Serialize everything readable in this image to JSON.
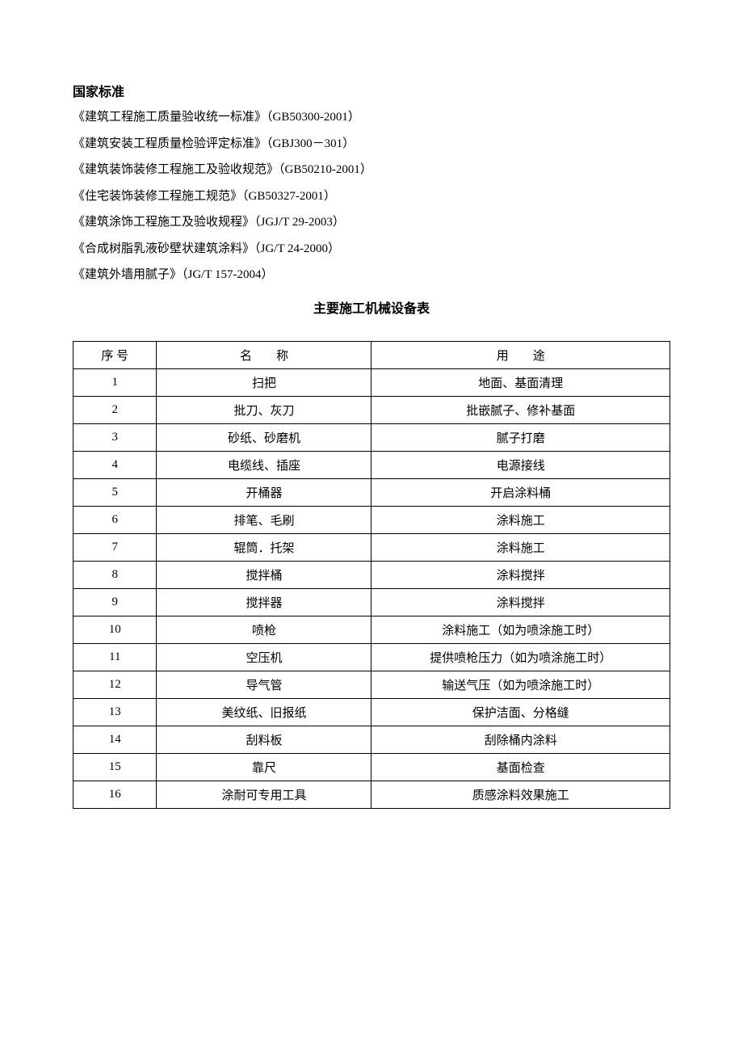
{
  "section_title": "国家标准",
  "standards": [
    "《建筑工程施工质量验收统一标准》（GB50300-2001）",
    "《建筑安装工程质量检验评定标准》（GBJ300－301）",
    "《建筑装饰装修工程施工及验收规范》（GB50210-2001）",
    "《住宅装饰装修工程施工规范》（GB50327-2001）",
    "《建筑涂饰工程施工及验收规程》（JGJ/T 29-2003）",
    "《合成树脂乳液砂壁状建筑涂料》（JG/T 24-2000）",
    "《建筑外墙用腻子》（JG/T 157-2004）"
  ],
  "table_title": "主要施工机械设备表",
  "table": {
    "headers": {
      "seq": "序 号",
      "name": "名  称",
      "use": "用  途"
    },
    "rows": [
      {
        "seq": "1",
        "name": "扫把",
        "use": "地面、基面清理"
      },
      {
        "seq": "2",
        "name": "批刀、灰刀",
        "use": "批嵌腻子、修补基面"
      },
      {
        "seq": "3",
        "name": "砂纸、砂磨机",
        "use": "腻子打磨"
      },
      {
        "seq": "4",
        "name": "电缆线、插座",
        "use": "电源接线"
      },
      {
        "seq": "5",
        "name": "开桶器",
        "use": "开启涂料桶"
      },
      {
        "seq": "6",
        "name": "排笔、毛刷",
        "use": "涂料施工"
      },
      {
        "seq": "7",
        "name": "辊筒．托架",
        "use": "涂料施工"
      },
      {
        "seq": "8",
        "name": "搅拌桶",
        "use": "涂料搅拌"
      },
      {
        "seq": "9",
        "name": "搅拌器",
        "use": "涂料搅拌"
      },
      {
        "seq": "10",
        "name": "喷枪",
        "use": "涂料施工（如为喷涂施工时）"
      },
      {
        "seq": "11",
        "name": "空压机",
        "use": "提供喷枪压力（如为喷涂施工时）"
      },
      {
        "seq": "12",
        "name": "导气管",
        "use": "输送气压（如为喷涂施工时）"
      },
      {
        "seq": "13",
        "name": "美纹纸、旧报纸",
        "use": "保护洁面、分格缝"
      },
      {
        "seq": "14",
        "name": "刮料板",
        "use": "刮除桶内涂料"
      },
      {
        "seq": "15",
        "name": "靠尺",
        "use": "基面检查"
      },
      {
        "seq": "16",
        "name": "涂耐可专用工具",
        "use": "质感涂料效果施工"
      }
    ]
  },
  "colors": {
    "text": "#000000",
    "background": "#ffffff",
    "border": "#000000"
  },
  "typography": {
    "body_fontsize": 15,
    "title_fontsize": 16,
    "font_family": "SimSun"
  }
}
